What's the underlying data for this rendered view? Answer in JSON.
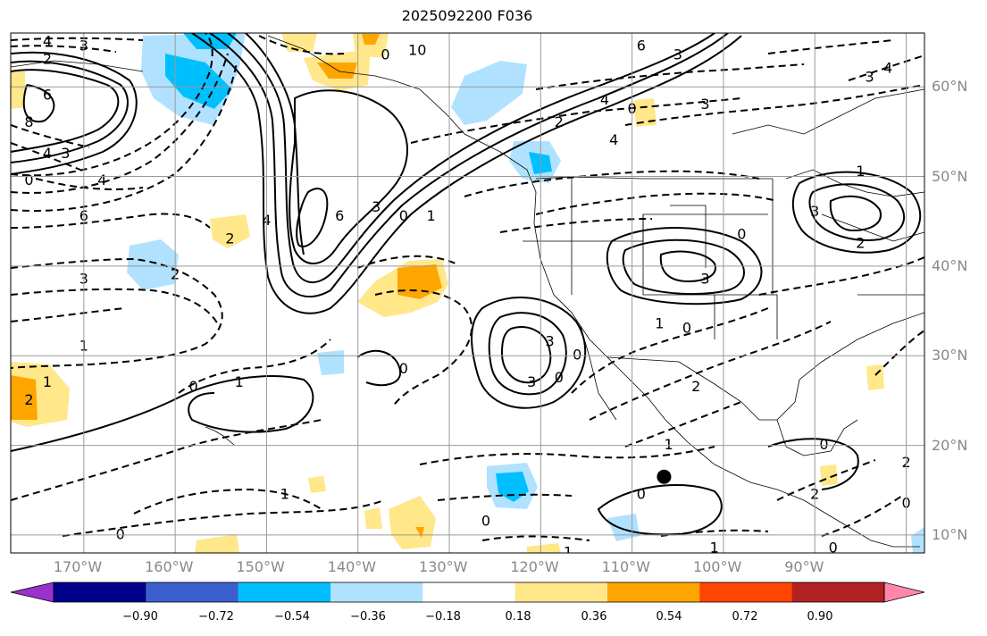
{
  "chart_data": {
    "type": "heatmap",
    "title": "2025092200 F036",
    "lon_ticks": [
      "170°W",
      "160°W",
      "150°W",
      "140°W",
      "130°W",
      "120°W",
      "110°W",
      "100°W",
      "90°W"
    ],
    "lat_ticks": [
      "60°N",
      "50°N",
      "40°N",
      "30°N",
      "20°N",
      "10°N"
    ],
    "lon_range": [
      -178,
      -78
    ],
    "lat_range": [
      8,
      66
    ],
    "grid": true,
    "colorbar": {
      "tick_labels": [
        "−0.90",
        "−0.72",
        "−0.54",
        "−0.36",
        "−0.18",
        "0.18",
        "0.36",
        "0.54",
        "0.72",
        "0.90"
      ],
      "levels": [
        -0.9,
        -0.72,
        -0.54,
        -0.36,
        -0.18,
        0.18,
        0.36,
        0.54,
        0.72,
        0.9
      ],
      "colors": [
        "#9932cc",
        "#00008b",
        "#3a5fcd",
        "#00bfff",
        "#b0e2ff",
        "#ffffff",
        "#ffe78a",
        "#ffa500",
        "#ff4500",
        "#b22222",
        "#ff88aa"
      ],
      "extend": "both"
    },
    "contour_labels": [
      {
        "text": "4",
        "lon": -174,
        "lat": 65
      },
      {
        "text": "3",
        "lon": -170,
        "lat": 64.5
      },
      {
        "text": "2",
        "lon": -174,
        "lat": 63
      },
      {
        "text": "6",
        "lon": -174,
        "lat": 59
      },
      {
        "text": "8",
        "lon": -176,
        "lat": 56
      },
      {
        "text": "4",
        "lon": -174,
        "lat": 52.5
      },
      {
        "text": "3",
        "lon": -172,
        "lat": 52.5
      },
      {
        "text": "0",
        "lon": -176,
        "lat": 49.5
      },
      {
        "text": "4",
        "lon": -168,
        "lat": 49.5
      },
      {
        "text": "6",
        "lon": -170,
        "lat": 45.5
      },
      {
        "text": "3",
        "lon": -170,
        "lat": 38.5
      },
      {
        "text": "2",
        "lon": -160,
        "lat": 39
      },
      {
        "text": "1",
        "lon": -170,
        "lat": 31
      },
      {
        "text": "1",
        "lon": -174,
        "lat": 27
      },
      {
        "text": "2",
        "lon": -176,
        "lat": 25
      },
      {
        "text": "0",
        "lon": -158,
        "lat": 26.5
      },
      {
        "text": "1",
        "lon": -153,
        "lat": 27
      },
      {
        "text": "1",
        "lon": -148,
        "lat": 14.5
      },
      {
        "text": "0",
        "lon": -166,
        "lat": 10
      },
      {
        "text": "2",
        "lon": -154,
        "lat": 43
      },
      {
        "text": "4",
        "lon": -150,
        "lat": 45
      },
      {
        "text": "6",
        "lon": -142,
        "lat": 45.5
      },
      {
        "text": "3",
        "lon": -138,
        "lat": 46.5
      },
      {
        "text": "0",
        "lon": -135,
        "lat": 45.5
      },
      {
        "text": "1",
        "lon": -132,
        "lat": 45.5
      },
      {
        "text": "0",
        "lon": -135,
        "lat": 28.5
      },
      {
        "text": "3",
        "lon": -121,
        "lat": 27
      },
      {
        "text": "3",
        "lon": -119,
        "lat": 31.5
      },
      {
        "text": "0",
        "lon": -118,
        "lat": 27.5
      },
      {
        "text": "0",
        "lon": -116,
        "lat": 30
      },
      {
        "text": "0",
        "lon": -133,
        "lat": 64
      },
      {
        "text": "1",
        "lon": -134,
        "lat": 64
      },
      {
        "text": "0",
        "lon": -137,
        "lat": 63.5
      },
      {
        "text": "6",
        "lon": -109,
        "lat": 64.5
      },
      {
        "text": "3",
        "lon": -105,
        "lat": 63.5
      },
      {
        "text": "4",
        "lon": -113,
        "lat": 58.5
      },
      {
        "text": "0",
        "lon": -110,
        "lat": 57.5
      },
      {
        "text": "3",
        "lon": -102,
        "lat": 58
      },
      {
        "text": "3",
        "lon": -84,
        "lat": 61
      },
      {
        "text": "4",
        "lon": -82,
        "lat": 62
      },
      {
        "text": "2",
        "lon": -118,
        "lat": 56
      },
      {
        "text": "4",
        "lon": -112,
        "lat": 54
      },
      {
        "text": "1",
        "lon": -85,
        "lat": 50.5
      },
      {
        "text": "3",
        "lon": -90,
        "lat": 46
      },
      {
        "text": "2",
        "lon": -85,
        "lat": 42.5
      },
      {
        "text": "0",
        "lon": -98,
        "lat": 43.5
      },
      {
        "text": "3",
        "lon": -102,
        "lat": 38.5
      },
      {
        "text": "1",
        "lon": -107,
        "lat": 33.5
      },
      {
        "text": "0",
        "lon": -104,
        "lat": 33
      },
      {
        "text": "2",
        "lon": -103,
        "lat": 26.5
      },
      {
        "text": "1",
        "lon": -106,
        "lat": 20
      },
      {
        "text": "0",
        "lon": -109,
        "lat": 14.5
      },
      {
        "text": "0",
        "lon": -89,
        "lat": 20
      },
      {
        "text": "2",
        "lon": -80,
        "lat": 18
      },
      {
        "text": "0",
        "lon": -80,
        "lat": 13.5
      },
      {
        "text": "0",
        "lon": -88,
        "lat": 8.5
      },
      {
        "text": "1",
        "lon": -101,
        "lat": 8.5
      },
      {
        "text": "1",
        "lon": -117,
        "lat": 8
      },
      {
        "text": "0",
        "lon": -126,
        "lat": 11.5
      },
      {
        "text": "2",
        "lon": -90,
        "lat": 14.5
      }
    ],
    "marker": {
      "lon": -106.5,
      "lat": 16.5,
      "symbol": "filled-circle"
    }
  }
}
